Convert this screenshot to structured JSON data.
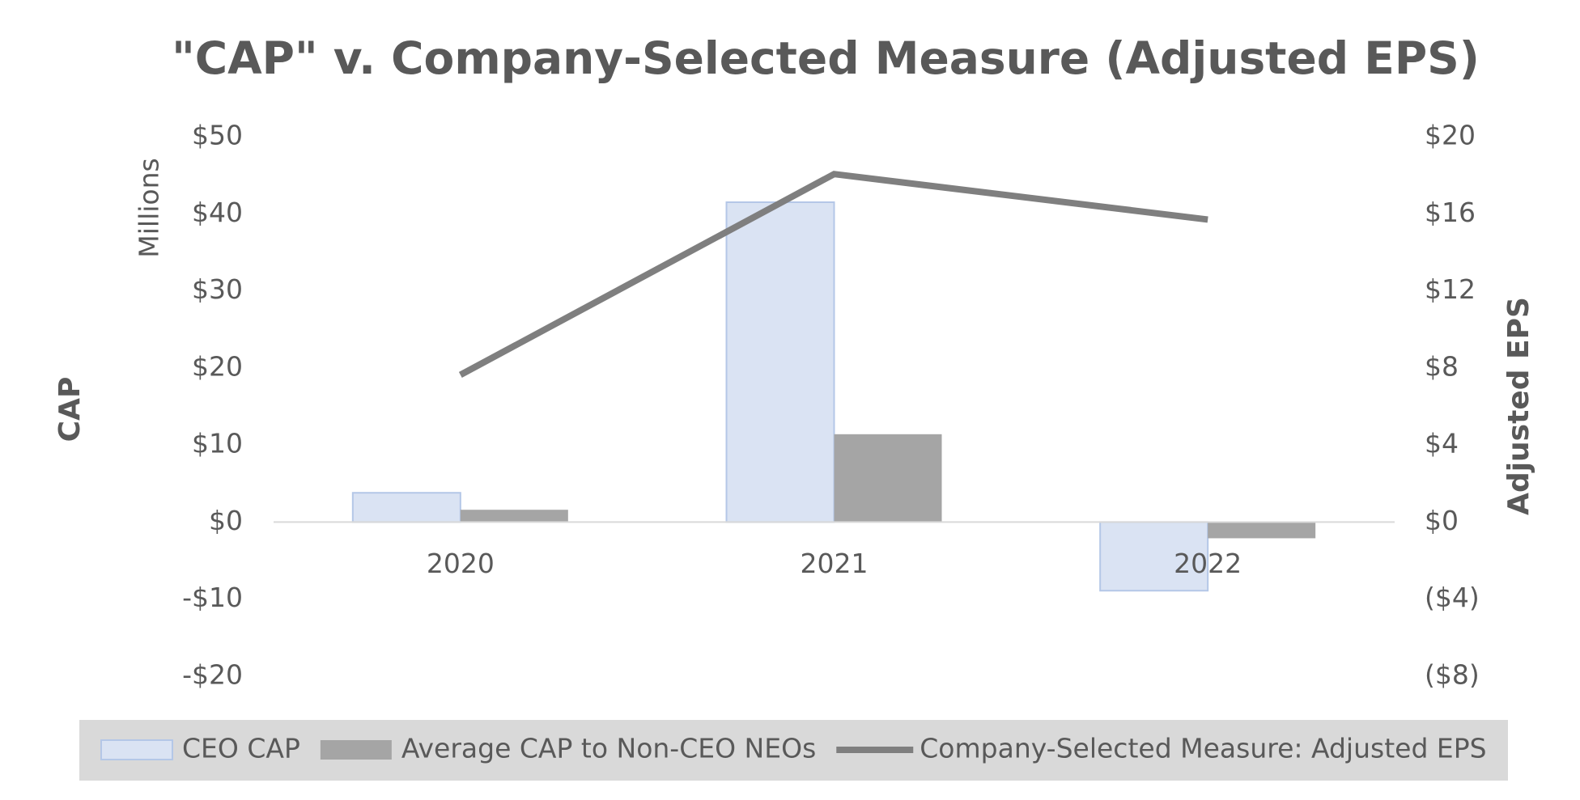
{
  "chart_data": {
    "type": "bar-line",
    "title": "\"CAP\" v. Company-Selected Measure (Adjusted EPS)",
    "y_label": "CAP",
    "y_unit": "Millions",
    "y2_label": "Adjusted EPS",
    "categories": [
      "2020",
      "2021",
      "2022"
    ],
    "series": [
      {
        "name": "CEO CAP",
        "type": "bar",
        "color": "#dae3f3",
        "values": [
          3.8,
          41.5,
          -8.9
        ]
      },
      {
        "name": "Average CAP to Non-CEO NEOs",
        "type": "bar",
        "color": "#a5a5a5",
        "values": [
          1.6,
          11.4,
          -2.1
        ]
      },
      {
        "name": "Company-Selected Measure: Adjusted EPS",
        "type": "line",
        "axis": "y2",
        "color": "#7f7f7f",
        "values": [
          7.64,
          18.06,
          15.7
        ]
      }
    ],
    "ylim": [
      -20,
      50
    ],
    "yticks": [
      {
        "value": -20,
        "label": "-$20"
      },
      {
        "value": -10,
        "label": "-$10"
      },
      {
        "value": 0,
        "label": "$0"
      },
      {
        "value": 10,
        "label": "$10"
      },
      {
        "value": 20,
        "label": "$20"
      },
      {
        "value": 30,
        "label": "$30"
      },
      {
        "value": 40,
        "label": "$40"
      },
      {
        "value": 50,
        "label": "$50"
      }
    ],
    "y2lim": [
      -8,
      20
    ],
    "y2ticks": [
      {
        "value": -8,
        "label": "($8)"
      },
      {
        "value": -4,
        "label": "($4)"
      },
      {
        "value": 0,
        "label": "$0"
      },
      {
        "value": 4,
        "label": "$4"
      },
      {
        "value": 8,
        "label": "$8"
      },
      {
        "value": 12,
        "label": "$12"
      },
      {
        "value": 16,
        "label": "$16"
      },
      {
        "value": 20,
        "label": "$20"
      }
    ],
    "legend": "bottom"
  }
}
